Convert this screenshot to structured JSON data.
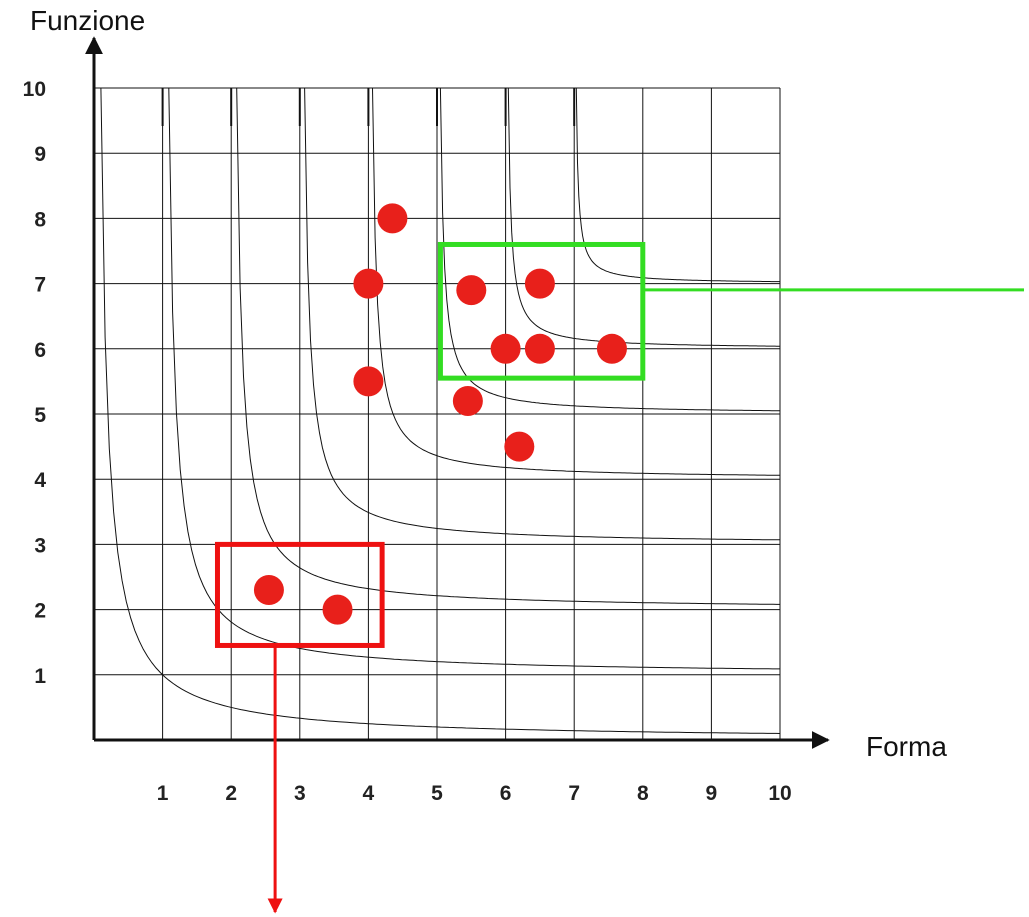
{
  "chart_data": {
    "type": "scatter",
    "xlabel": "Forma",
    "ylabel": "Funzione",
    "xlim": [
      0,
      10
    ],
    "ylim": [
      0,
      10
    ],
    "x_ticks": [
      "1",
      "2",
      "3",
      "4",
      "5",
      "6",
      "7",
      "8",
      "9",
      "10"
    ],
    "y_ticks": [
      "1",
      "2",
      "3",
      "4",
      "5",
      "6",
      "7",
      "8",
      "9",
      "10"
    ],
    "grid": true,
    "iso_curves": [
      {
        "x0": 0,
        "asymptote_y": 0
      },
      {
        "x0": 1,
        "asymptote_y": 1
      },
      {
        "x0": 2,
        "asymptote_y": 2
      },
      {
        "x0": 3,
        "asymptote_y": 3
      },
      {
        "x0": 4,
        "asymptote_y": 4
      },
      {
        "x0": 5,
        "asymptote_y": 5
      },
      {
        "x0": 6,
        "asymptote_y": 6
      },
      {
        "x0": 7,
        "asymptote_y": 7
      }
    ],
    "points": [
      {
        "x": 4.35,
        "y": 8.0
      },
      {
        "x": 4.0,
        "y": 7.0
      },
      {
        "x": 4.0,
        "y": 5.5
      },
      {
        "x": 5.5,
        "y": 6.9
      },
      {
        "x": 6.5,
        "y": 7.0
      },
      {
        "x": 6.0,
        "y": 6.0
      },
      {
        "x": 6.5,
        "y": 6.0
      },
      {
        "x": 7.55,
        "y": 6.0
      },
      {
        "x": 5.45,
        "y": 5.2
      },
      {
        "x": 6.2,
        "y": 4.5
      },
      {
        "x": 2.55,
        "y": 2.3
      },
      {
        "x": 3.55,
        "y": 2.0
      }
    ],
    "highlight_boxes": [
      {
        "name": "green-box",
        "x": [
          5.05,
          8.0
        ],
        "y": [
          5.55,
          7.6
        ],
        "color": "#33dd22"
      },
      {
        "name": "red-box",
        "x": [
          1.8,
          4.2
        ],
        "y": [
          1.45,
          3.0
        ],
        "color": "#ee1111"
      }
    ],
    "colors": {
      "point": "#e8201b",
      "axis": "#111111",
      "grid": "#111111",
      "curve": "#111111"
    }
  }
}
